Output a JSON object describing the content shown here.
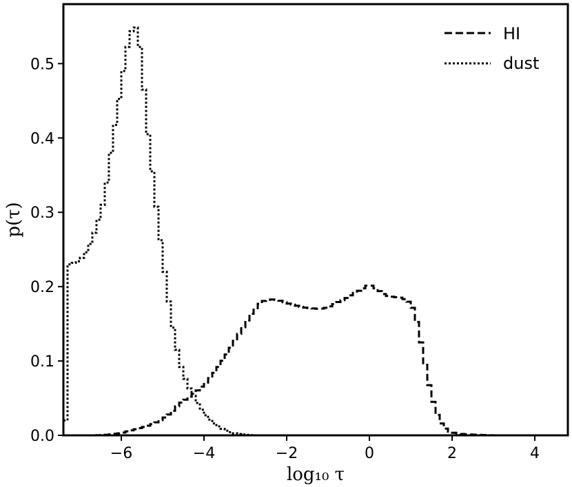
{
  "chart_data": {
    "type": "line",
    "xlabel": "log₁₀ τ",
    "ylabel": "p(τ)",
    "xlim": [
      -7.4,
      4.8
    ],
    "ylim": [
      0,
      0.58
    ],
    "xticks": [
      -6,
      -4,
      -2,
      0,
      2,
      4
    ],
    "xtick_labels": [
      "−6",
      "−4",
      "−2",
      "0",
      "2",
      "4"
    ],
    "yticks": [
      0.0,
      0.1,
      0.2,
      0.3,
      0.4,
      0.5
    ],
    "ytick_labels": [
      "0.0",
      "0.1",
      "0.2",
      "0.3",
      "0.4",
      "0.5"
    ],
    "grid": false,
    "legend_position": "top-right",
    "series": [
      {
        "name": "HI",
        "style": "dashed",
        "color": "#000000",
        "x": [
          -7.4,
          -6.6,
          -6.3,
          -6.0,
          -5.8,
          -5.6,
          -5.4,
          -5.2,
          -5.0,
          -4.8,
          -4.6,
          -4.4,
          -4.2,
          -4.0,
          -3.8,
          -3.6,
          -3.4,
          -3.2,
          -3.0,
          -2.8,
          -2.6,
          -2.4,
          -2.2,
          -2.0,
          -1.8,
          -1.6,
          -1.4,
          -1.2,
          -1.0,
          -0.8,
          -0.6,
          -0.4,
          -0.2,
          0.0,
          0.2,
          0.4,
          0.6,
          0.8,
          1.0,
          1.1,
          1.2,
          1.3,
          1.4,
          1.5,
          1.6,
          1.7,
          1.8,
          1.9,
          2.0,
          2.2,
          2.5,
          3.0,
          4.0,
          4.8
        ],
        "y": [
          0.0,
          0.0,
          0.001,
          0.003,
          0.006,
          0.009,
          0.012,
          0.016,
          0.022,
          0.03,
          0.042,
          0.05,
          0.058,
          0.068,
          0.08,
          0.096,
          0.113,
          0.132,
          0.15,
          0.168,
          0.18,
          0.183,
          0.182,
          0.178,
          0.175,
          0.172,
          0.171,
          0.17,
          0.172,
          0.178,
          0.183,
          0.19,
          0.196,
          0.203,
          0.196,
          0.188,
          0.186,
          0.185,
          0.178,
          0.165,
          0.14,
          0.11,
          0.08,
          0.055,
          0.035,
          0.02,
          0.012,
          0.006,
          0.004,
          0.002,
          0.001,
          0.0,
          0.0,
          0.0
        ]
      },
      {
        "name": "dust",
        "style": "dotted",
        "color": "#000000",
        "x": [
          -7.4,
          -7.35,
          -7.3,
          -7.25,
          -7.2,
          -7.0,
          -6.8,
          -6.6,
          -6.4,
          -6.2,
          -6.0,
          -5.9,
          -5.8,
          -5.7,
          -5.6,
          -5.5,
          -5.4,
          -5.2,
          -5.0,
          -4.8,
          -4.6,
          -4.4,
          -4.2,
          -4.0,
          -3.8,
          -3.6,
          -3.4,
          -3.2,
          -3.0,
          -2.8,
          -2.5,
          -2.0,
          0.0,
          4.8
        ],
        "y": [
          0.01,
          0.02,
          0.06,
          0.23,
          0.231,
          0.235,
          0.25,
          0.28,
          0.32,
          0.4,
          0.47,
          0.51,
          0.535,
          0.552,
          0.545,
          0.5,
          0.43,
          0.33,
          0.24,
          0.16,
          0.1,
          0.068,
          0.048,
          0.03,
          0.018,
          0.01,
          0.005,
          0.002,
          0.001,
          0.0,
          0.0,
          0.0,
          0.0,
          0.0
        ]
      }
    ]
  }
}
